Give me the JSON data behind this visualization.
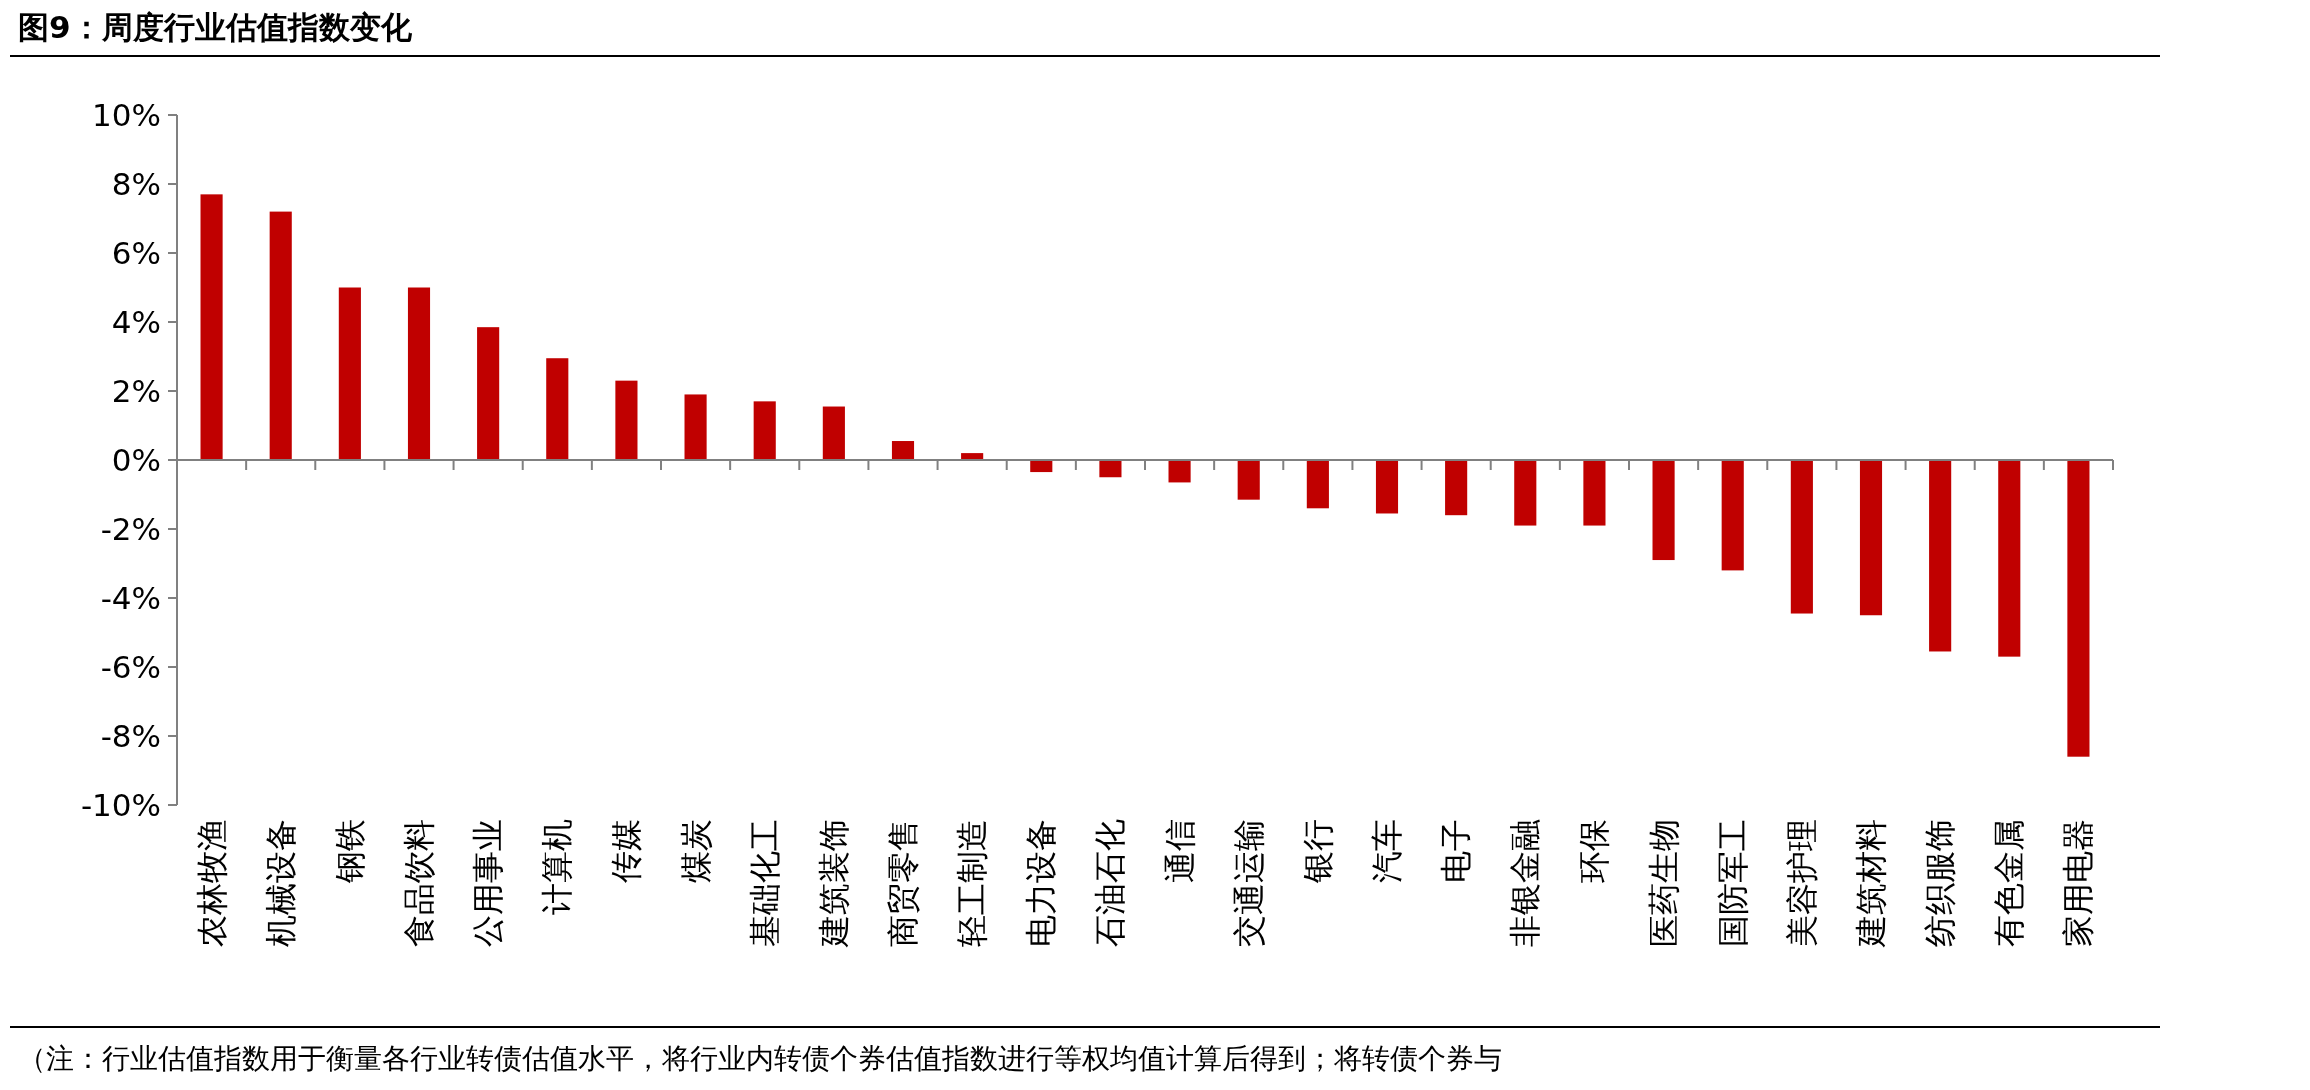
{
  "chart_data": {
    "type": "bar",
    "title": "图9：周度行业估值指数变化",
    "categories": [
      "农林牧渔",
      "机械设备",
      "钢铁",
      "食品饮料",
      "公用事业",
      "计算机",
      "传媒",
      "煤炭",
      "基础化工",
      "建筑装饰",
      "商贸零售",
      "轻工制造",
      "电力设备",
      "石油石化",
      "通信",
      "交通运输",
      "银行",
      "汽车",
      "电子",
      "非银金融",
      "环保",
      "医药生物",
      "国防军工",
      "美容护理",
      "建筑材料",
      "纺织服饰",
      "有色金属",
      "家用电器"
    ],
    "values": [
      7.7,
      7.2,
      5.0,
      5.0,
      3.85,
      2.95,
      2.3,
      1.9,
      1.7,
      1.55,
      0.55,
      0.2,
      -0.35,
      -0.5,
      -0.65,
      -1.15,
      -1.4,
      -1.55,
      -1.6,
      -1.9,
      -1.9,
      -2.9,
      -3.2,
      -4.45,
      -4.5,
      -5.55,
      -5.7,
      -8.6
    ],
    "color": "#c00000",
    "ylim": [
      -10,
      10
    ],
    "yticks": [
      {
        "value": -10,
        "label": "-10%"
      },
      {
        "value": -8,
        "label": "-8%"
      },
      {
        "value": -6,
        "label": "-6%"
      },
      {
        "value": -4,
        "label": "-4%"
      },
      {
        "value": -2,
        "label": "-2%"
      },
      {
        "value": 0,
        "label": "0%"
      },
      {
        "value": 2,
        "label": "2%"
      },
      {
        "value": 4,
        "label": "4%"
      },
      {
        "value": 6,
        "label": "6%"
      },
      {
        "value": 8,
        "label": "8%"
      },
      {
        "value": 10,
        "label": "10%"
      }
    ],
    "annotations": [
      "（注：行业估值指数用于衡量各行业转债估值水平，将行业内转债个券估值指数进行等权均值计算后得到；将转债个券与"
    ]
  }
}
